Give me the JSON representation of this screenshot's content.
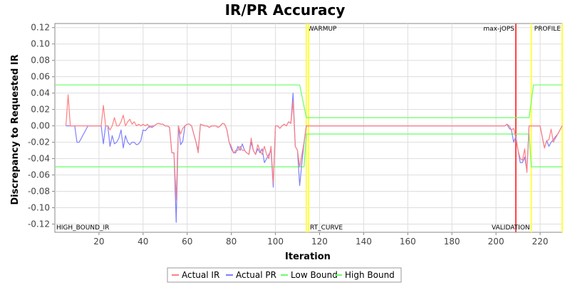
{
  "chart_data": {
    "type": "line",
    "title": "IR/PR Accuracy",
    "xlabel": "Iteration",
    "ylabel": "Discrepancy to Requested IR",
    "xlim": [
      0,
      230
    ],
    "ylim": [
      -0.13,
      0.125
    ],
    "x_ticks": [
      20,
      40,
      60,
      80,
      100,
      120,
      140,
      160,
      180,
      200,
      220
    ],
    "y_ticks": [
      0.12,
      0.1,
      0.08,
      0.06,
      0.04,
      0.02,
      0.0,
      -0.02,
      -0.04,
      -0.06,
      -0.08,
      -0.1,
      -0.12
    ],
    "x_tick_labels": [
      "20",
      "40",
      "60",
      "80",
      "100",
      "120",
      "140",
      "160",
      "180",
      "200",
      "220"
    ],
    "y_tick_labels": [
      "0.12",
      "0.10",
      "0.08",
      "0.06",
      "0.04",
      "0.02",
      "0.00",
      "-0.02",
      "-0.04",
      "-0.06",
      "-0.08",
      "-0.10",
      "-0.12"
    ],
    "grid": true,
    "legend": "bottom",
    "series": [
      {
        "name": "Actual IR",
        "color": "#ff7f7f",
        "points": [
          [
            5,
            0.0
          ],
          [
            6,
            0.038
          ],
          [
            7,
            0.0
          ],
          [
            10,
            0.0
          ],
          [
            15,
            0.0
          ],
          [
            20,
            0.0
          ],
          [
            21,
            0.0
          ],
          [
            22,
            0.025
          ],
          [
            23,
            0.0
          ],
          [
            24,
            0.0
          ],
          [
            25,
            -0.005
          ],
          [
            26,
            0.0
          ],
          [
            27,
            0.01
          ],
          [
            28,
            0.0
          ],
          [
            29,
            0.0
          ],
          [
            30,
            0.005
          ],
          [
            31,
            0.013
          ],
          [
            32,
            0.0
          ],
          [
            33,
            0.005
          ],
          [
            34,
            0.008
          ],
          [
            35,
            0.002
          ],
          [
            36,
            0.005
          ],
          [
            37,
            0.0
          ],
          [
            38,
            0.002
          ],
          [
            39,
            0.0
          ],
          [
            40,
            0.002
          ],
          [
            41,
            0.0
          ],
          [
            42,
            0.002
          ],
          [
            43,
            -0.002
          ],
          [
            44,
            0.0
          ],
          [
            45,
            0.0
          ],
          [
            46,
            0.002
          ],
          [
            47,
            0.003
          ],
          [
            48,
            0.002
          ],
          [
            49,
            0.002
          ],
          [
            50,
            0.0
          ],
          [
            51,
            0.0
          ],
          [
            52,
            -0.002
          ],
          [
            53,
            -0.033
          ],
          [
            54,
            -0.033
          ],
          [
            55,
            -0.09
          ],
          [
            56,
            0.0
          ],
          [
            57,
            -0.01
          ],
          [
            58,
            -0.003
          ],
          [
            59,
            0.0
          ],
          [
            60,
            0.002
          ],
          [
            61,
            0.002
          ],
          [
            62,
            0.0
          ],
          [
            63,
            -0.01
          ],
          [
            64,
            -0.02
          ],
          [
            65,
            -0.033
          ],
          [
            66,
            0.002
          ],
          [
            67,
            0.001
          ],
          [
            68,
            0.0
          ],
          [
            69,
            0.0
          ],
          [
            70,
            -0.002
          ],
          [
            71,
            0.0
          ],
          [
            72,
            0.0
          ],
          [
            73,
            0.0
          ],
          [
            74,
            -0.002
          ],
          [
            75,
            0.0
          ],
          [
            76,
            0.003
          ],
          [
            77,
            0.002
          ],
          [
            78,
            -0.005
          ],
          [
            79,
            -0.02
          ],
          [
            80,
            -0.025
          ],
          [
            81,
            -0.033
          ],
          [
            82,
            -0.03
          ],
          [
            83,
            -0.03
          ],
          [
            84,
            -0.025
          ],
          [
            85,
            -0.03
          ],
          [
            86,
            -0.03
          ],
          [
            87,
            -0.033
          ],
          [
            88,
            -0.035
          ],
          [
            89,
            -0.015
          ],
          [
            90,
            -0.03
          ],
          [
            91,
            -0.035
          ],
          [
            92,
            -0.023
          ],
          [
            93,
            -0.03
          ],
          [
            94,
            -0.035
          ],
          [
            95,
            -0.025
          ],
          [
            96,
            -0.035
          ],
          [
            97,
            -0.04
          ],
          [
            98,
            -0.025
          ],
          [
            99,
            -0.07
          ],
          [
            100,
            0.0
          ],
          [
            101,
            0.0
          ],
          [
            102,
            -0.003
          ],
          [
            103,
            0.0
          ],
          [
            104,
            0.002
          ],
          [
            105,
            0.0
          ],
          [
            106,
            0.005
          ],
          [
            107,
            0.003
          ],
          [
            108,
            0.03
          ],
          [
            109,
            -0.025
          ],
          [
            110,
            -0.03
          ],
          [
            111,
            -0.05
          ],
          [
            112,
            -0.035
          ],
          [
            113,
            -0.02
          ],
          [
            114,
            0.0
          ],
          [
            120,
            0.0
          ],
          [
            140,
            0.0
          ],
          [
            160,
            0.0
          ],
          [
            180,
            0.0
          ],
          [
            190,
            0.0
          ],
          [
            195,
            0.0
          ],
          [
            200,
            0.0
          ],
          [
            204,
            0.0
          ],
          [
            205,
            0.002
          ],
          [
            206,
            0.0
          ],
          [
            207,
            -0.005
          ],
          [
            208,
            -0.003
          ],
          [
            209,
            -0.015
          ],
          [
            210,
            -0.03
          ],
          [
            211,
            -0.04
          ],
          [
            212,
            -0.042
          ],
          [
            213,
            -0.028
          ],
          [
            214,
            -0.057
          ],
          [
            215,
            0.0
          ],
          [
            216,
            0.0
          ],
          [
            220,
            0.0
          ],
          [
            222,
            -0.027
          ],
          [
            223,
            -0.018
          ],
          [
            224,
            -0.017
          ],
          [
            225,
            -0.004
          ],
          [
            226,
            -0.02
          ],
          [
            227,
            -0.015
          ],
          [
            228,
            -0.01
          ],
          [
            229,
            -0.005
          ],
          [
            230,
            0.0
          ]
        ]
      },
      {
        "name": "Actual PR",
        "color": "#7f7fff",
        "points": [
          [
            5,
            0.0
          ],
          [
            8,
            0.0
          ],
          [
            9,
            0.0
          ],
          [
            10,
            -0.02
          ],
          [
            11,
            -0.02
          ],
          [
            15,
            0.0
          ],
          [
            20,
            0.0
          ],
          [
            21,
            0.0
          ],
          [
            22,
            -0.022
          ],
          [
            23,
            0.0
          ],
          [
            24,
            0.0
          ],
          [
            25,
            -0.025
          ],
          [
            26,
            -0.012
          ],
          [
            27,
            -0.022
          ],
          [
            28,
            -0.02
          ],
          [
            29,
            -0.015
          ],
          [
            30,
            -0.005
          ],
          [
            31,
            -0.027
          ],
          [
            32,
            -0.012
          ],
          [
            33,
            -0.02
          ],
          [
            34,
            -0.023
          ],
          [
            35,
            -0.02
          ],
          [
            36,
            -0.02
          ],
          [
            37,
            -0.023
          ],
          [
            38,
            -0.022
          ],
          [
            39,
            -0.018
          ],
          [
            40,
            -0.005
          ],
          [
            41,
            -0.006
          ],
          [
            42,
            -0.003
          ],
          [
            43,
            0.0
          ],
          [
            44,
            -0.002
          ],
          [
            45,
            0.0
          ],
          [
            46,
            0.002
          ],
          [
            47,
            0.003
          ],
          [
            48,
            0.002
          ],
          [
            49,
            0.002
          ],
          [
            50,
            0.0
          ],
          [
            51,
            0.0
          ],
          [
            52,
            -0.002
          ],
          [
            53,
            -0.033
          ],
          [
            54,
            -0.033
          ],
          [
            55,
            -0.118
          ],
          [
            56,
            0.0
          ],
          [
            57,
            -0.023
          ],
          [
            58,
            -0.019
          ],
          [
            59,
            0.0
          ],
          [
            60,
            0.002
          ],
          [
            61,
            0.002
          ],
          [
            62,
            0.0
          ],
          [
            63,
            -0.01
          ],
          [
            64,
            -0.02
          ],
          [
            65,
            -0.03
          ],
          [
            66,
            0.002
          ],
          [
            67,
            0.001
          ],
          [
            68,
            0.0
          ],
          [
            69,
            0.0
          ],
          [
            70,
            -0.002
          ],
          [
            71,
            0.0
          ],
          [
            72,
            0.0
          ],
          [
            73,
            0.0
          ],
          [
            74,
            -0.002
          ],
          [
            75,
            0.0
          ],
          [
            76,
            0.003
          ],
          [
            77,
            0.002
          ],
          [
            78,
            -0.005
          ],
          [
            79,
            -0.02
          ],
          [
            80,
            -0.028
          ],
          [
            81,
            -0.033
          ],
          [
            82,
            -0.033
          ],
          [
            83,
            -0.025
          ],
          [
            84,
            -0.03
          ],
          [
            85,
            -0.022
          ],
          [
            86,
            -0.03
          ],
          [
            87,
            -0.033
          ],
          [
            88,
            -0.035
          ],
          [
            89,
            -0.02
          ],
          [
            90,
            -0.03
          ],
          [
            91,
            -0.035
          ],
          [
            92,
            -0.028
          ],
          [
            93,
            -0.033
          ],
          [
            94,
            -0.028
          ],
          [
            95,
            -0.045
          ],
          [
            96,
            -0.04
          ],
          [
            97,
            -0.035
          ],
          [
            98,
            -0.03
          ],
          [
            99,
            -0.075
          ],
          [
            100,
            0.0
          ],
          [
            101,
            0.0
          ],
          [
            102,
            -0.003
          ],
          [
            103,
            0.0
          ],
          [
            104,
            0.002
          ],
          [
            105,
            0.0
          ],
          [
            106,
            0.005
          ],
          [
            107,
            0.003
          ],
          [
            108,
            0.04
          ],
          [
            109,
            -0.025
          ],
          [
            110,
            -0.03
          ],
          [
            111,
            -0.073
          ],
          [
            112,
            -0.045
          ],
          [
            113,
            -0.02
          ],
          [
            114,
            0.0
          ],
          [
            120,
            0.0
          ],
          [
            140,
            0.0
          ],
          [
            160,
            0.0
          ],
          [
            180,
            0.0
          ],
          [
            190,
            0.0
          ],
          [
            195,
            0.0
          ],
          [
            200,
            0.0
          ],
          [
            204,
            0.0
          ],
          [
            205,
            0.002
          ],
          [
            206,
            -0.003
          ],
          [
            207,
            -0.005
          ],
          [
            208,
            -0.02
          ],
          [
            209,
            -0.013
          ],
          [
            210,
            -0.03
          ],
          [
            211,
            -0.045
          ],
          [
            212,
            -0.045
          ],
          [
            213,
            -0.038
          ],
          [
            214,
            -0.055
          ],
          [
            215,
            0.0
          ],
          [
            216,
            0.0
          ],
          [
            220,
            0.0
          ],
          [
            222,
            -0.027
          ],
          [
            223,
            -0.018
          ],
          [
            224,
            -0.025
          ],
          [
            225,
            -0.02
          ],
          [
            226,
            -0.017
          ],
          [
            227,
            -0.013
          ],
          [
            228,
            -0.01
          ],
          [
            229,
            -0.005
          ],
          [
            230,
            0.0
          ]
        ]
      },
      {
        "name": "Low Bound",
        "color": "#66ff66",
        "points": [
          [
            0,
            -0.05
          ],
          [
            113,
            -0.05
          ],
          [
            114,
            -0.01
          ],
          [
            215,
            -0.01
          ],
          [
            216,
            -0.05
          ],
          [
            230,
            -0.05
          ]
        ]
      },
      {
        "name": "High Bound",
        "color": "#66ff66",
        "points": [
          [
            0,
            0.05
          ],
          [
            111,
            0.05
          ],
          [
            114,
            0.01
          ],
          [
            215,
            0.01
          ],
          [
            217,
            0.05
          ],
          [
            230,
            0.05
          ]
        ]
      }
    ],
    "markers": [
      {
        "x": 114,
        "label": "WARMUP",
        "color": "#ffff44",
        "label_pos": "top"
      },
      {
        "x": 115,
        "label": "RT_CURVE",
        "color": "#ffff44",
        "label_pos": "bottom"
      },
      {
        "x": 209,
        "label": "max-jOPS",
        "color": "#ff4444",
        "label_pos": "top-left"
      },
      {
        "x": 216,
        "label": "VALIDATION",
        "color": "#ffff44",
        "label_pos": "bottom-left"
      },
      {
        "x": 230,
        "label": "PROFILE",
        "color": "#ffff44",
        "label_pos": "top-left"
      }
    ],
    "corner_label": "HIGH_BOUND_IR"
  }
}
